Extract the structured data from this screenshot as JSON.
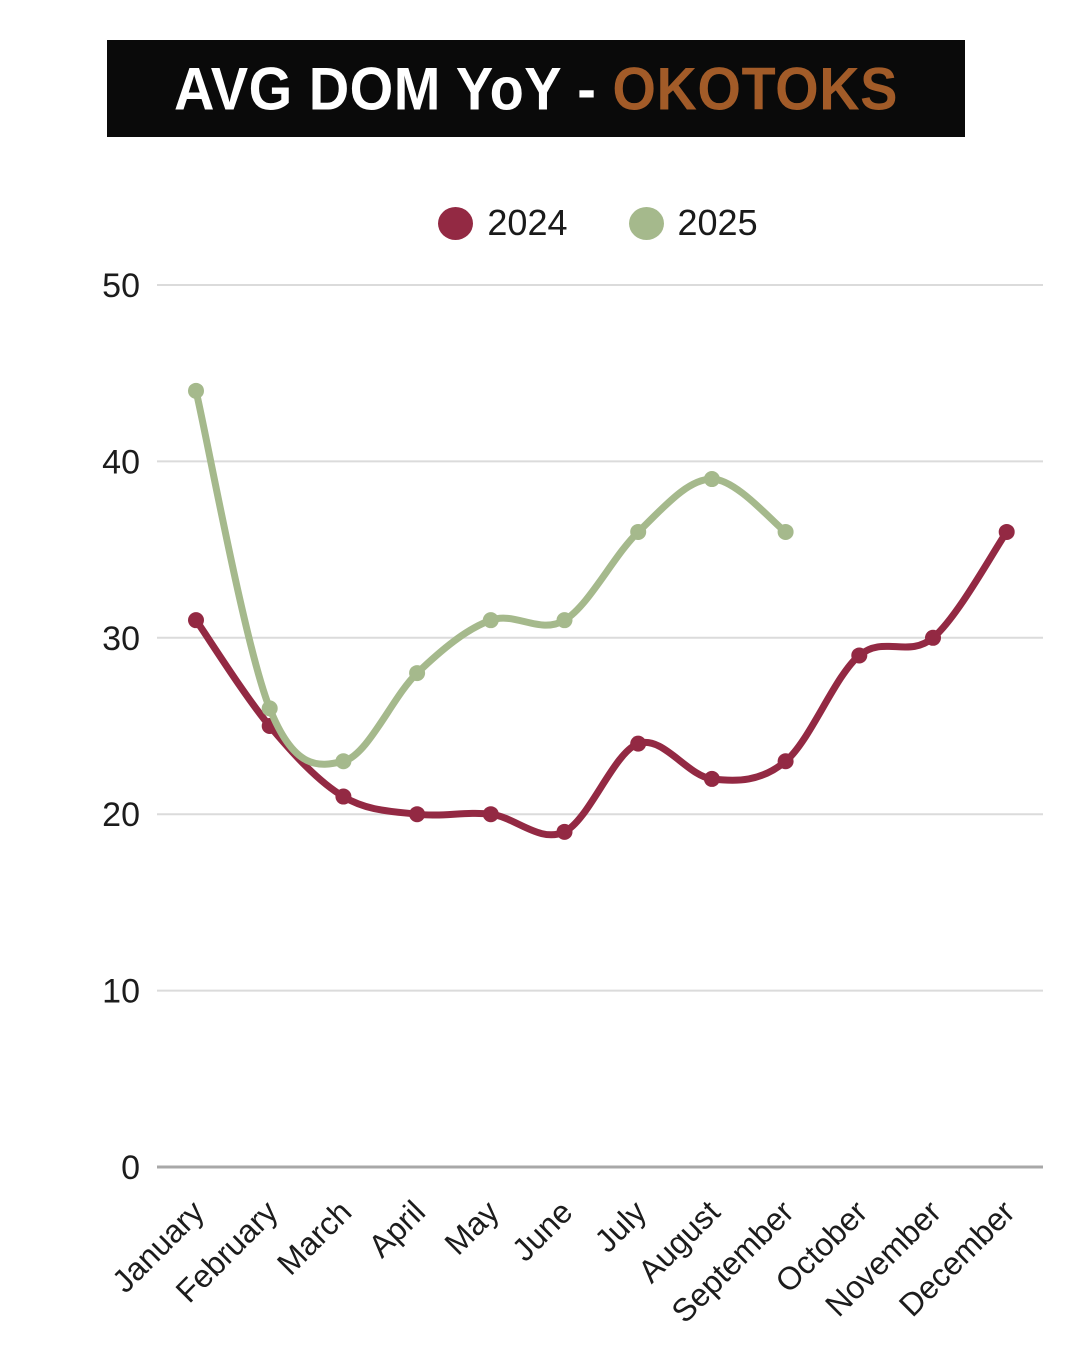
{
  "header": {
    "title_main": "AVG DOM YoY -",
    "title_accent": "OKOTOKS",
    "accent_color": "#a25b28",
    "banner_bg": "#0a0a0a"
  },
  "legend": {
    "items": [
      {
        "label": "2024",
        "color": "#932943"
      },
      {
        "label": "2025",
        "color": "#a5b98c"
      }
    ]
  },
  "chart_data": {
    "type": "line",
    "title": "AVG DOM YoY - OKOTOKS",
    "categories": [
      "January",
      "February",
      "March",
      "April",
      "May",
      "June",
      "July",
      "August",
      "September",
      "October",
      "November",
      "December"
    ],
    "series": [
      {
        "name": "2024",
        "color": "#932943",
        "values": [
          31,
          25,
          21,
          20,
          20,
          19,
          24,
          22,
          23,
          29,
          30,
          36
        ]
      },
      {
        "name": "2025",
        "color": "#a5b98c",
        "values": [
          44,
          26,
          23,
          28,
          31,
          31,
          36,
          39,
          36,
          null,
          null,
          null
        ]
      }
    ],
    "xlabel": "",
    "ylabel": "",
    "ylim": [
      0,
      50
    ],
    "yticks": [
      0,
      10,
      20,
      30,
      40,
      50
    ],
    "grid": true,
    "legend_position": "top",
    "grid_color": "#dbdbdb",
    "axis_line_color": "#a8a8a8",
    "tick_label_color": "#1c1c1c"
  }
}
